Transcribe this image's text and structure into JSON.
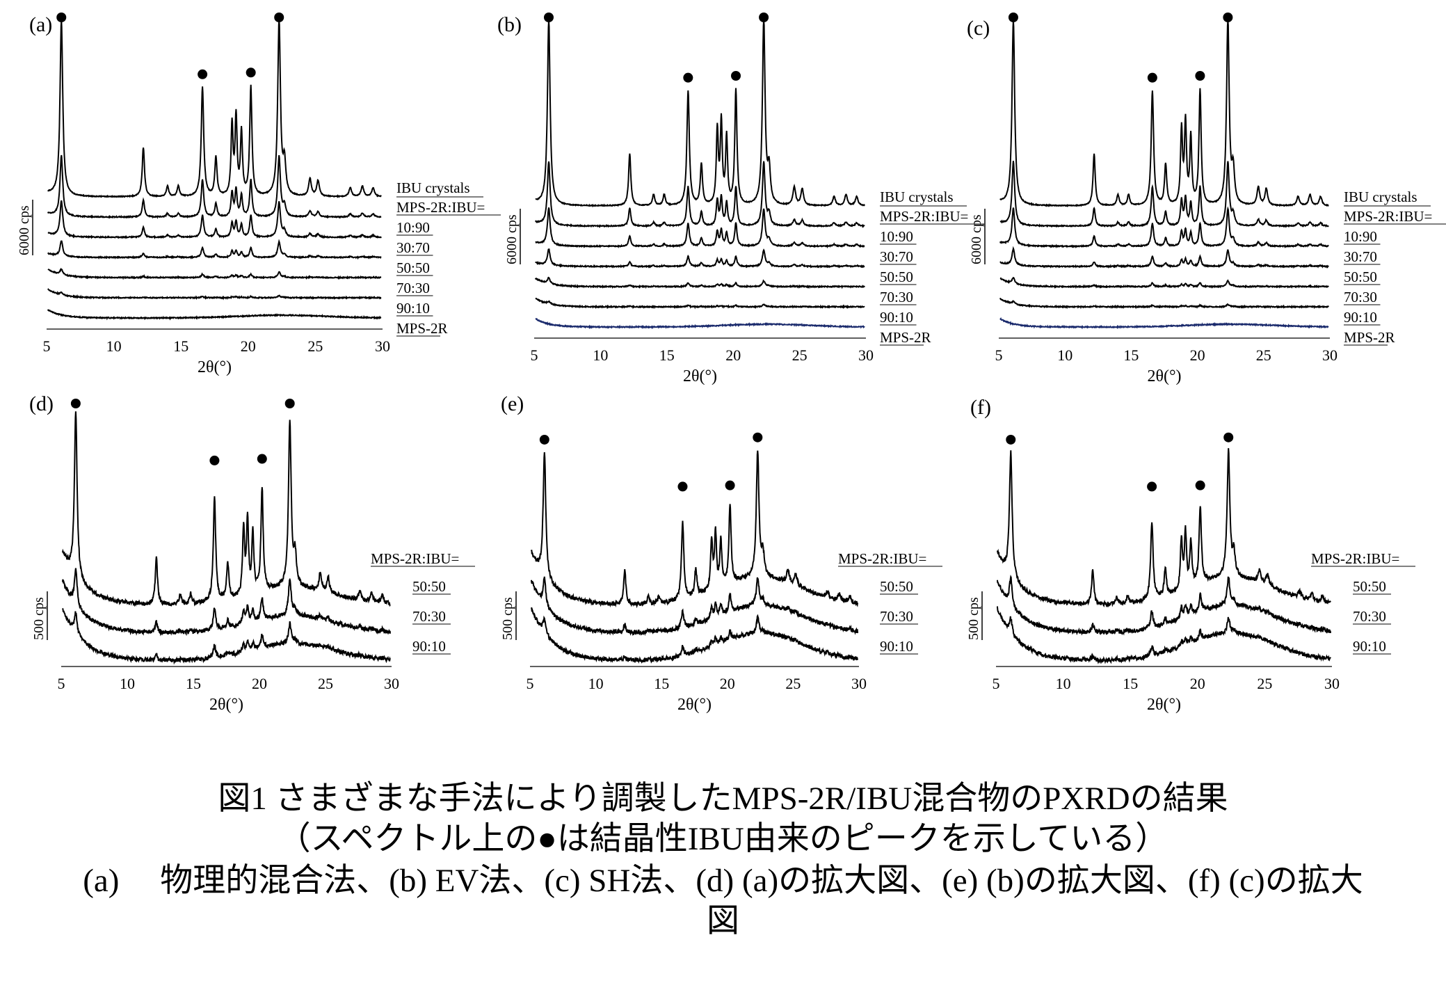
{
  "figure": {
    "x_axis_label": "2θ(°)",
    "x_ticks": [
      "5",
      "10",
      "15",
      "20",
      "25",
      "30"
    ],
    "panels": [
      {
        "id": "a",
        "label": "(a)",
        "scale": "6000 cps",
        "header_lines": [
          "IBU crystals",
          "MPS-2R:IBU="
        ],
        "traces": [
          "10:90",
          "30:70",
          "50:50",
          "70:30",
          "90:10",
          "MPS-2R"
        ],
        "peak_marker_2theta": [
          6.1,
          16.6,
          20.2,
          22.3
        ]
      },
      {
        "id": "b",
        "label": "(b)",
        "scale": "6000 cps",
        "header_lines": [
          "IBU crystals",
          "MPS-2R:IBU="
        ],
        "traces": [
          "10:90",
          "30:70",
          "50:50",
          "70:30",
          "90:10",
          "MPS-2R"
        ],
        "peak_marker_2theta": [
          6.1,
          16.6,
          20.2,
          22.3
        ]
      },
      {
        "id": "c",
        "label": "(c)",
        "scale": "6000 cps",
        "header_lines": [
          "IBU crystals",
          "MPS-2R:IBU="
        ],
        "traces": [
          "10:90",
          "30:70",
          "50:50",
          "70:30",
          "90:10",
          "MPS-2R"
        ],
        "peak_marker_2theta": [
          6.1,
          16.6,
          20.2,
          22.3
        ]
      },
      {
        "id": "d",
        "label": "(d)",
        "scale": "500 cps",
        "header_lines": [
          "MPS-2R:IBU="
        ],
        "traces": [
          "50:50",
          "70:30",
          "90:10"
        ],
        "peak_marker_2theta": [
          6.1,
          16.6,
          20.2,
          22.3
        ]
      },
      {
        "id": "e",
        "label": "(e)",
        "scale": "500 cps",
        "header_lines": [
          "MPS-2R:IBU="
        ],
        "traces": [
          "50:50",
          "70:30",
          "90:10"
        ],
        "peak_marker_2theta": [
          6.1,
          16.6,
          20.2,
          22.3
        ]
      },
      {
        "id": "f",
        "label": "(f)",
        "scale": "500 cps",
        "header_lines": [
          "MPS-2R:IBU="
        ],
        "traces": [
          "50:50",
          "70:30",
          "90:10"
        ],
        "peak_marker_2theta": [
          6.1,
          16.6,
          20.2,
          22.3
        ]
      }
    ]
  },
  "chart_data": {
    "type": "line",
    "title": "図1 さまざまな手法により調製したMPS-2R/IBU混合物のPXRDの結果",
    "xlabel": "2θ(°)",
    "ylabel": "",
    "xlim": [
      5,
      30
    ],
    "x_ticks": [
      5,
      10,
      15,
      20,
      25,
      30
    ],
    "ibu_peak_positions_2theta": [
      6.1,
      12.2,
      14.0,
      14.8,
      16.6,
      17.6,
      18.8,
      19.1,
      19.5,
      20.2,
      22.3,
      24.6,
      25.2,
      27.6,
      28.5,
      29.3
    ],
    "panels": [
      {
        "panel": "(a)",
        "method": "物理的混合法",
        "scale_bar": "6000 cps",
        "series": [
          "IBU crystals",
          "10:90",
          "30:70",
          "50:50",
          "70:30",
          "90:10",
          "MPS-2R"
        ]
      },
      {
        "panel": "(b)",
        "method": "EV法",
        "scale_bar": "6000 cps",
        "series": [
          "IBU crystals",
          "10:90",
          "30:70",
          "50:50",
          "70:30",
          "90:10",
          "MPS-2R"
        ]
      },
      {
        "panel": "(c)",
        "method": "SH法",
        "scale_bar": "6000 cps",
        "series": [
          "IBU crystals",
          "10:90",
          "30:70",
          "50:50",
          "70:30",
          "90:10",
          "MPS-2R"
        ]
      },
      {
        "panel": "(d)",
        "method": "(a)の拡大図",
        "scale_bar": "500 cps",
        "series": [
          "50:50",
          "70:30",
          "90:10"
        ]
      },
      {
        "panel": "(e)",
        "method": "(b)の拡大図",
        "scale_bar": "500 cps",
        "series": [
          "50:50",
          "70:30",
          "90:10"
        ]
      },
      {
        "panel": "(f)",
        "method": "(c)の拡大図",
        "scale_bar": "500 cps",
        "series": [
          "50:50",
          "70:30",
          "90:10"
        ]
      }
    ]
  },
  "caption": {
    "line1": "図1 さまざまな手法により調製したMPS-2R/IBU混合物のPXRDの結果",
    "line2": "（スペクトル上の●は結晶性IBU由来のピークを示している）",
    "line3": "(a)　 物理的混合法、(b) EV法、(c) SH法、(d) (a)の拡大図、(e) (b)の拡大図、(f) (c)の拡大",
    "line4": "図"
  }
}
